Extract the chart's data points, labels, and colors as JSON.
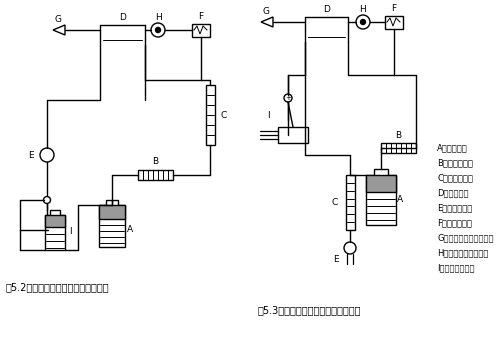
{
  "title": "図5.2　密閉循環方式の構成（一例）",
  "title2": "図5.3　開放送気方式の構成（一例）",
  "legend": [
    "A：還元容器",
    "B：乾　燥　管",
    "C：流　量　計",
    "D：吸収セル",
    "E：空気ポンプ",
    "F：記　録　計",
    "G：水銀中空陰極ランプ",
    "H：原子吸光用検出器",
    "I：水銀除去装置"
  ],
  "bg_color": "#ffffff",
  "line_color": "#000000",
  "fig_width": 5.0,
  "fig_height": 3.4,
  "dpi": 100
}
